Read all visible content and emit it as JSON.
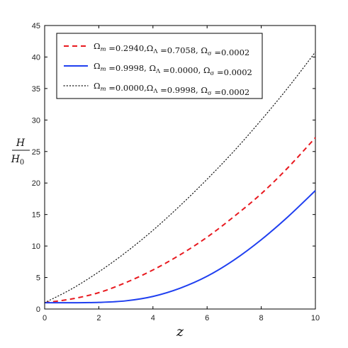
{
  "chart_data": {
    "type": "line",
    "xlabel": "z",
    "ylabel_num": "H",
    "ylabel_den": "H",
    "ylabel_den_sub": "0",
    "xlim": [
      0,
      10
    ],
    "ylim": [
      0,
      45
    ],
    "xticks": [
      0,
      2,
      4,
      6,
      8,
      10
    ],
    "yticks": [
      0,
      5,
      10,
      15,
      20,
      25,
      30,
      35,
      40,
      45
    ],
    "legend_position": "top-left",
    "x": [
      0,
      1,
      2,
      3,
      4,
      5,
      6,
      7,
      8,
      9,
      10
    ],
    "series": [
      {
        "name": "Ω_m =0.2940,Ω_Λ =0.7058, Ω_σ =0.0002",
        "color": "#e8191f",
        "style": "dashed",
        "values": [
          1.0,
          1.6,
          2.6,
          4.2,
          6.2,
          8.6,
          11.4,
          14.7,
          18.3,
          22.5,
          27.2
        ]
      },
      {
        "name": "Ω_m =0.9998, Ω_Λ =0.0000, Ω_σ =0.0002",
        "color": "#1f3ff0",
        "style": "solid",
        "values": [
          1.0,
          1.0,
          1.05,
          1.3,
          2.0,
          3.3,
          5.2,
          7.8,
          11.0,
          14.7,
          18.8
        ]
      },
      {
        "name": "Ω_m =0.0000,Ω_Λ =0.9998, Ω_σ =0.0002",
        "color": "#111111",
        "style": "dotted",
        "values": [
          1.0,
          3.2,
          5.9,
          9.0,
          12.5,
          16.4,
          20.6,
          25.1,
          30.0,
          35.2,
          40.8
        ]
      }
    ]
  }
}
